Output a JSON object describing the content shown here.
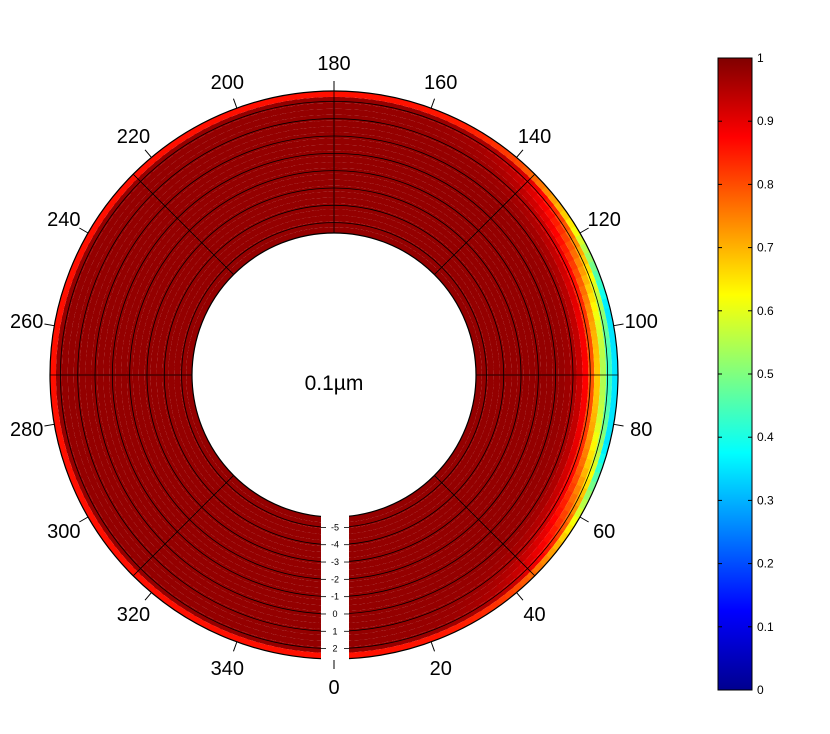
{
  "chart_data": {
    "type": "heatmap",
    "subtype": "polar-annulus",
    "center_label": "0.1µm",
    "angular_tick_labels": [
      "0",
      "20",
      "40",
      "60",
      "80",
      "100",
      "120",
      "140",
      "160",
      "180",
      "200",
      "220",
      "240",
      "260",
      "280",
      "300",
      "320",
      "340"
    ],
    "angular_ticks_deg": [
      0,
      20,
      40,
      60,
      80,
      100,
      120,
      140,
      160,
      180,
      200,
      220,
      240,
      260,
      280,
      300,
      320,
      340
    ],
    "radial_tick_labels": [
      "2",
      "1",
      "0",
      "-1",
      "-2",
      "-3",
      "-4",
      "-5"
    ],
    "radial_ticks": [
      2,
      1,
      0,
      -1,
      -2,
      -3,
      -4,
      -5
    ],
    "radial_range": [
      2.6,
      -5.6
    ],
    "colorbar": {
      "colormap": "jet",
      "range": [
        0,
        1
      ],
      "tick_labels": [
        "0",
        "0.1",
        "0.2",
        "0.3",
        "0.4",
        "0.5",
        "0.6",
        "0.7",
        "0.8",
        "0.9",
        "1"
      ],
      "ticks": [
        0,
        0.1,
        0.2,
        0.3,
        0.4,
        0.5,
        0.6,
        0.7,
        0.8,
        0.9,
        1
      ]
    },
    "value_field": {
      "base_value": 0.98,
      "outer_edge_value": 0.86,
      "min_value": 0.35,
      "min_at_angle_deg": 90,
      "dip_angular_spread_deg": 32,
      "dip_radial_depth": 1.4
    },
    "grid": true
  }
}
